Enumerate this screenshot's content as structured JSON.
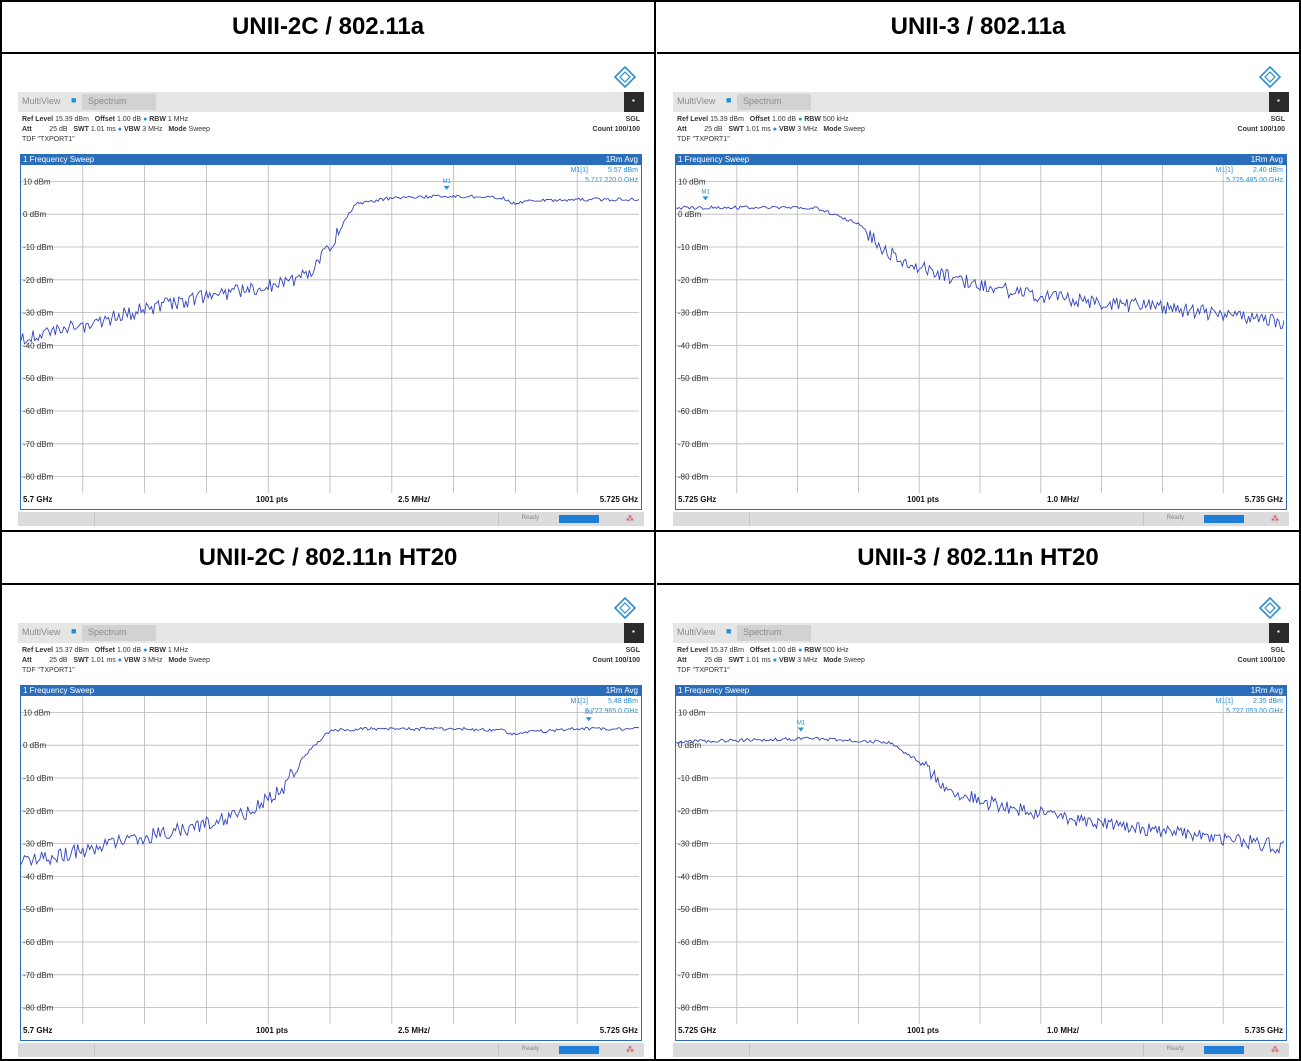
{
  "panels": [
    {
      "title": "UNII-2C / 802.11a",
      "multiview": "MultiView",
      "tab": "Spectrum",
      "ref_level": "15.39 dBm",
      "offset": "1.00 dB",
      "rbw": "1 MHz",
      "att": "25 dB",
      "swt": "1.01 ms",
      "vbw": "3 MHz",
      "mode": "Sweep",
      "tdf": "TDF \"TXPORT1\"",
      "sgl": "SGL",
      "count": "Count 100/100",
      "sweep_title": "1 Frequency Sweep",
      "trace_label": "1Rm Avg",
      "marker_label": "M1[1]",
      "marker_level": "5.57 dBm",
      "marker_freq": "5.717 220 0 GHz",
      "marker_tag": "M1",
      "start": "5.7 GHz",
      "pts": "1001 pts",
      "div": "2.5 MHz/",
      "stop": "5.725 GHz",
      "status": "Ready",
      "chart_data": {
        "type": "line",
        "xunit": "GHz",
        "xlim": [
          5.7,
          5.725
        ],
        "ylim": [
          -85,
          15
        ],
        "ylabels": [
          "10 dBm",
          "0 dBm",
          "-10 dBm",
          "-20 dBm",
          "-30 dBm",
          "-40 dBm",
          "-50 dBm",
          "-60 dBm",
          "-70 dBm",
          "-80 dBm"
        ],
        "x": [
          5.7,
          5.7025,
          5.705,
          5.7075,
          5.71,
          5.7115,
          5.7125,
          5.7135,
          5.715,
          5.7175,
          5.7195,
          5.72,
          5.7205,
          5.7225,
          5.725
        ],
        "y": [
          -38,
          -34,
          -29,
          -25,
          -22,
          -19,
          -10,
          3,
          5,
          5.5,
          5,
          3,
          4,
          4.5,
          4.5
        ],
        "marker": {
          "x": 5.71722,
          "y": 5.57
        }
      }
    },
    {
      "title": "UNII-3 / 802.11a",
      "multiview": "MultiView",
      "tab": "Spectrum",
      "ref_level": "15.39 dBm",
      "offset": "1.00 dB",
      "rbw": "500 kHz",
      "att": "25 dB",
      "swt": "1.01 ms",
      "vbw": "3 MHz",
      "mode": "Sweep",
      "tdf": "TDF \"TXPORT1\"",
      "sgl": "SGL",
      "count": "Count 100/100",
      "sweep_title": "1 Frequency Sweep",
      "trace_label": "1Rm Avg",
      "marker_label": "M1[1]",
      "marker_level": "2.40 dBm",
      "marker_freq": "5.725 485 00 GHz",
      "marker_tag": "M1",
      "start": "5.725 GHz",
      "pts": "1001 pts",
      "div": "1.0 MHz/",
      "stop": "5.735 GHz",
      "status": "Ready",
      "chart_data": {
        "type": "line",
        "xunit": "GHz",
        "xlim": [
          5.725,
          5.735
        ],
        "ylim": [
          -85,
          15
        ],
        "ylabels": [
          "10 dBm",
          "0 dBm",
          "-10 dBm",
          "-20 dBm",
          "-30 dBm",
          "-40 dBm",
          "-50 dBm",
          "-60 dBm",
          "-70 dBm",
          "-80 dBm"
        ],
        "x": [
          5.725,
          5.726,
          5.7273,
          5.728,
          5.7285,
          5.729,
          5.73,
          5.731,
          5.732,
          5.733,
          5.734,
          5.735
        ],
        "y": [
          2,
          2,
          2,
          -3,
          -12,
          -16,
          -22,
          -25,
          -27,
          -28.5,
          -30.5,
          -33
        ],
        "marker": {
          "x": 5.725485,
          "y": 2.4
        }
      }
    },
    {
      "title": "UNII-2C / 802.11n HT20",
      "multiview": "MultiView",
      "tab": "Spectrum",
      "ref_level": "15.37 dBm",
      "offset": "1.00 dB",
      "rbw": "1 MHz",
      "att": "25 dB",
      "swt": "1.01 ms",
      "vbw": "3 MHz",
      "mode": "Sweep",
      "tdf": "TDF \"TXPORT1\"",
      "sgl": "SGL",
      "count": "Count 100/100",
      "sweep_title": "1 Frequency Sweep",
      "trace_label": "1Rm Avg",
      "marker_label": "M1[1]",
      "marker_level": "5.48 dBm",
      "marker_freq": "5.722 965 0 GHz",
      "marker_tag": "M1",
      "start": "5.7 GHz",
      "pts": "1001 pts",
      "div": "2.5 MHz/",
      "stop": "5.725 GHz",
      "status": "Ready",
      "chart_data": {
        "type": "line",
        "xunit": "GHz",
        "xlim": [
          5.7,
          5.725
        ],
        "ylim": [
          -85,
          15
        ],
        "ylabels": [
          "10 dBm",
          "0 dBm",
          "-10 dBm",
          "-20 dBm",
          "-30 dBm",
          "-40 dBm",
          "-50 dBm",
          "-60 dBm",
          "-70 dBm",
          "-80 dBm"
        ],
        "x": [
          5.7,
          5.7025,
          5.705,
          5.7075,
          5.709,
          5.7105,
          5.7115,
          5.7125,
          5.714,
          5.7175,
          5.7195,
          5.72,
          5.7205,
          5.7225,
          5.725
        ],
        "y": [
          -36,
          -32,
          -28,
          -24,
          -21,
          -14,
          -3,
          4.5,
          5,
          5,
          4.5,
          3,
          4,
          5,
          5
        ],
        "marker": {
          "x": 5.722965,
          "y": 5.48
        }
      }
    },
    {
      "title": "UNII-3 / 802.11n HT20",
      "multiview": "MultiView",
      "tab": "Spectrum",
      "ref_level": "15.37 dBm",
      "offset": "1.00 dB",
      "rbw": "500 kHz",
      "att": "25 dB",
      "swt": "1.01 ms",
      "vbw": "3 MHz",
      "mode": "Sweep",
      "tdf": "TDF \"TXPORT1\"",
      "sgl": "SGL",
      "count": "Count 100/100",
      "sweep_title": "1 Frequency Sweep",
      "trace_label": "1Rm Avg",
      "marker_label": "M1[1]",
      "marker_level": "2.35 dBm",
      "marker_freq": "5.727 053 00 GHz",
      "marker_tag": "M1",
      "start": "5.725 GHz",
      "pts": "1001 pts",
      "div": "1.0 MHz/",
      "stop": "5.735 GHz",
      "status": "Ready",
      "chart_data": {
        "type": "line",
        "xunit": "GHz",
        "xlim": [
          5.725,
          5.735
        ],
        "ylim": [
          -85,
          15
        ],
        "ylabels": [
          "10 dBm",
          "0 dBm",
          "-10 dBm",
          "-20 dBm",
          "-30 dBm",
          "-40 dBm",
          "-50 dBm",
          "-60 dBm",
          "-70 dBm",
          "-80 dBm"
        ],
        "x": [
          5.725,
          5.726,
          5.7272,
          5.7285,
          5.729,
          5.7295,
          5.73,
          5.731,
          5.732,
          5.733,
          5.734,
          5.735
        ],
        "y": [
          1,
          1.5,
          2,
          1,
          -5,
          -14,
          -17,
          -21,
          -24,
          -26,
          -28.5,
          -31
        ],
        "marker": {
          "x": 5.727053,
          "y": 2.35
        }
      }
    }
  ],
  "colors": {
    "trace": "#3344bb",
    "accent": "#2a6ebb",
    "marker": "#2b8fd3",
    "grid": "#b8b8b8"
  }
}
